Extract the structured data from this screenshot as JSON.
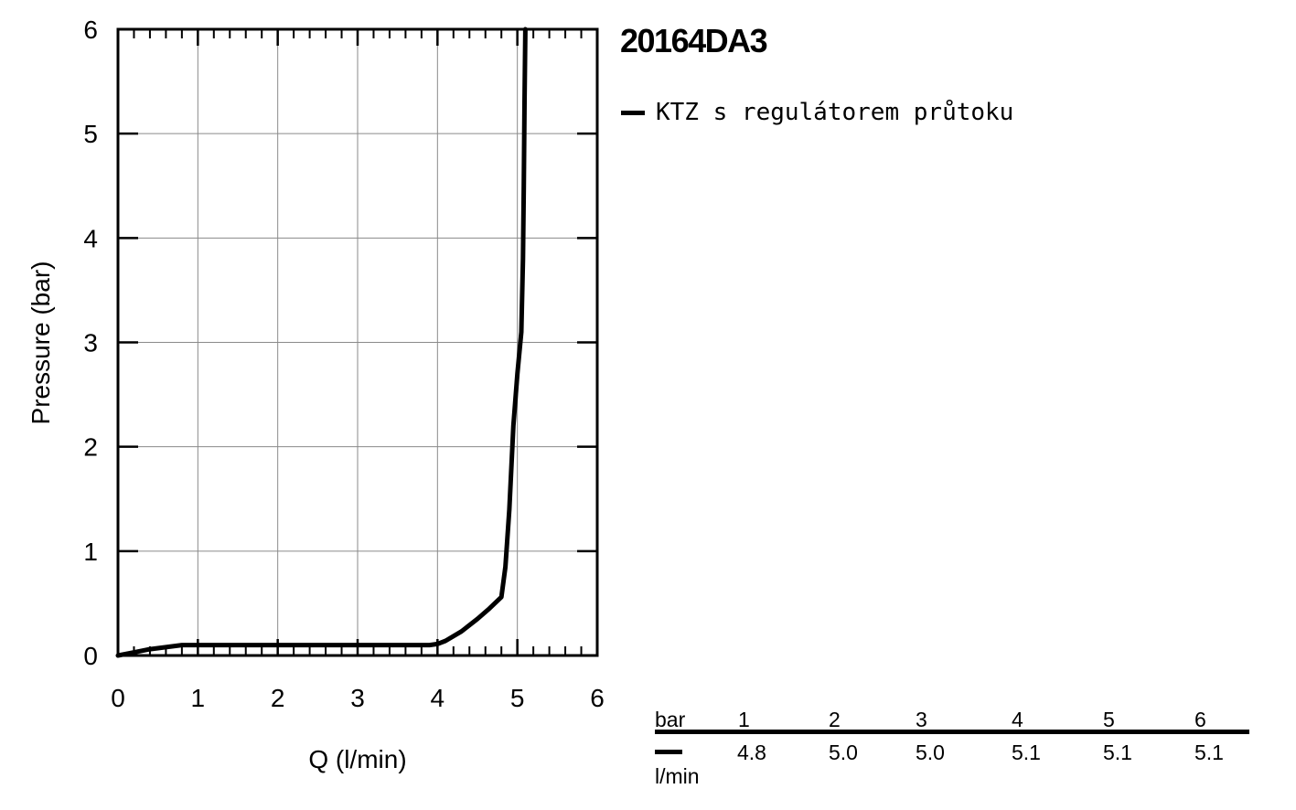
{
  "chart_data": {
    "type": "line",
    "title": "20164DA3",
    "xlabel": "Q (l/min)",
    "ylabel": "Pressure (bar)",
    "xlim": [
      0,
      6
    ],
    "ylim": [
      0,
      6
    ],
    "x_ticks": [
      "0",
      "1",
      "2",
      "3",
      "4",
      "5",
      "6"
    ],
    "y_ticks": [
      "0",
      "1",
      "2",
      "3",
      "4",
      "5",
      "6"
    ],
    "grid": true,
    "legend_position": "top-right",
    "series": [
      {
        "name": "KTZ s regulátorem průtoku",
        "color": "#000000",
        "points": [
          [
            0,
            0
          ],
          [
            0.2,
            0.03
          ],
          [
            0.4,
            0.06
          ],
          [
            0.6,
            0.08
          ],
          [
            0.8,
            0.1
          ],
          [
            1.0,
            0.1
          ],
          [
            2.0,
            0.1
          ],
          [
            3.0,
            0.1
          ],
          [
            3.9,
            0.1
          ],
          [
            4.0,
            0.11
          ],
          [
            4.1,
            0.14
          ],
          [
            4.3,
            0.23
          ],
          [
            4.5,
            0.35
          ],
          [
            4.65,
            0.45
          ],
          [
            4.8,
            0.56
          ],
          [
            4.85,
            0.85
          ],
          [
            4.9,
            1.4
          ],
          [
            4.95,
            2.2
          ],
          [
            5.0,
            2.7
          ],
          [
            5.05,
            3.1
          ],
          [
            5.07,
            3.8
          ],
          [
            5.08,
            4.5
          ],
          [
            5.09,
            5.3
          ],
          [
            5.1,
            6.0
          ]
        ]
      }
    ]
  },
  "table": {
    "header_label": "bar",
    "columns": [
      "1",
      "2",
      "3",
      "4",
      "5",
      "6"
    ],
    "unit_label": "l/min",
    "values": [
      "4.8",
      "5.0",
      "5.0",
      "5.1",
      "5.1",
      "5.1"
    ]
  }
}
